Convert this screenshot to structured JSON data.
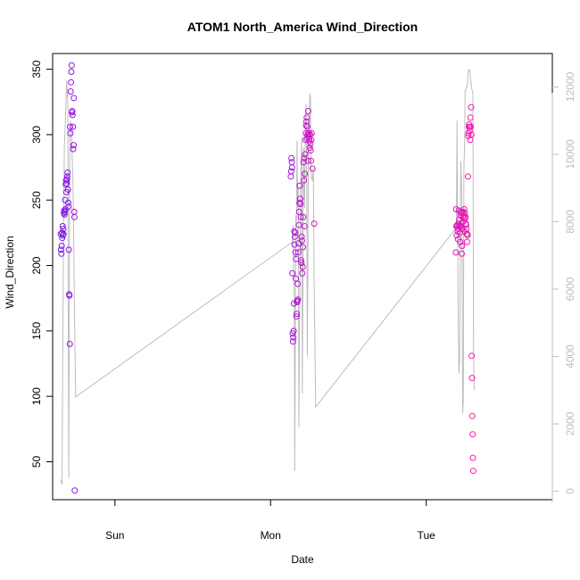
{
  "chart_data": {
    "type": "scatter",
    "title": "ATOM1 North_America Wind_Direction",
    "xlabel": "Date",
    "ylabel": "Wind_Direction",
    "x_ticks": [
      "Sun",
      "Mon",
      "Tue"
    ],
    "y_ticks": [
      "50",
      "100",
      "150",
      "200",
      "250",
      "300",
      "350"
    ],
    "y2_ticks": [
      "0",
      "2000",
      "4000",
      "6000",
      "8000",
      "10000",
      "12000"
    ],
    "ylim": [
      21,
      362
    ],
    "y2lim": [
      -250,
      12990
    ],
    "xlim": [
      0,
      3.21
    ],
    "x_tick_positions": [
      0.4,
      1.4,
      2.4
    ],
    "grid": false,
    "legend": "none",
    "colors": {
      "points_start": "#7a12f0",
      "points_end": "#ff1aa8",
      "line": "#bdbdbd",
      "right_axis": "#bdbdbd"
    },
    "points": [
      [
        0.052,
        224
      ],
      [
        0.054,
        212
      ],
      [
        0.056,
        209
      ],
      [
        0.058,
        215
      ],
      [
        0.06,
        225
      ],
      [
        0.062,
        221
      ],
      [
        0.064,
        230
      ],
      [
        0.066,
        223
      ],
      [
        0.068,
        228
      ],
      [
        0.07,
        224
      ],
      [
        0.072,
        240
      ],
      [
        0.074,
        242
      ],
      [
        0.076,
        239
      ],
      [
        0.078,
        241
      ],
      [
        0.08,
        250
      ],
      [
        0.082,
        243
      ],
      [
        0.084,
        262
      ],
      [
        0.086,
        265
      ],
      [
        0.088,
        256
      ],
      [
        0.09,
        263
      ],
      [
        0.092,
        266
      ],
      [
        0.094,
        268
      ],
      [
        0.096,
        271
      ],
      [
        0.098,
        258
      ],
      [
        0.1,
        248
      ],
      [
        0.102,
        245
      ],
      [
        0.104,
        212
      ],
      [
        0.106,
        178
      ],
      [
        0.108,
        177
      ],
      [
        0.11,
        140
      ],
      [
        0.112,
        306
      ],
      [
        0.114,
        301
      ],
      [
        0.116,
        333
      ],
      [
        0.118,
        340
      ],
      [
        0.12,
        348
      ],
      [
        0.122,
        353
      ],
      [
        0.124,
        317
      ],
      [
        0.126,
        318
      ],
      [
        0.128,
        315
      ],
      [
        0.13,
        306
      ],
      [
        0.132,
        289
      ],
      [
        0.134,
        292
      ],
      [
        0.136,
        328
      ],
      [
        0.138,
        241
      ],
      [
        0.14,
        237
      ],
      [
        0.142,
        28
      ],
      [
        1.53,
        268
      ],
      [
        1.532,
        272
      ],
      [
        1.534,
        282
      ],
      [
        1.536,
        279
      ],
      [
        1.538,
        275
      ],
      [
        1.54,
        194
      ],
      [
        1.542,
        148
      ],
      [
        1.544,
        142
      ],
      [
        1.546,
        145
      ],
      [
        1.548,
        150
      ],
      [
        1.55,
        171
      ],
      [
        1.552,
        226
      ],
      [
        1.554,
        216
      ],
      [
        1.556,
        222
      ],
      [
        1.558,
        225
      ],
      [
        1.56,
        210
      ],
      [
        1.562,
        190
      ],
      [
        1.564,
        205
      ],
      [
        1.566,
        161
      ],
      [
        1.568,
        163
      ],
      [
        1.57,
        172
      ],
      [
        1.572,
        173
      ],
      [
        1.574,
        186
      ],
      [
        1.576,
        174
      ],
      [
        1.578,
        210
      ],
      [
        1.58,
        217
      ],
      [
        1.582,
        231
      ],
      [
        1.584,
        241
      ],
      [
        1.586,
        248
      ],
      [
        1.588,
        261
      ],
      [
        1.59,
        251
      ],
      [
        1.592,
        247
      ],
      [
        1.594,
        237
      ],
      [
        1.596,
        204
      ],
      [
        1.598,
        202
      ],
      [
        1.6,
        222
      ],
      [
        1.602,
        219
      ],
      [
        1.604,
        194
      ],
      [
        1.606,
        199
      ],
      [
        1.608,
        214
      ],
      [
        1.61,
        237
      ],
      [
        1.612,
        279
      ],
      [
        1.614,
        265
      ],
      [
        1.616,
        282
      ],
      [
        1.618,
        230
      ],
      [
        1.62,
        270
      ],
      [
        1.622,
        285
      ],
      [
        1.624,
        296
      ],
      [
        1.626,
        301
      ],
      [
        1.628,
        307
      ],
      [
        1.63,
        310
      ],
      [
        1.632,
        313
      ],
      [
        1.634,
        297
      ],
      [
        1.636,
        306
      ],
      [
        1.638,
        300
      ],
      [
        1.64,
        280
      ],
      [
        1.642,
        318
      ],
      [
        1.644,
        300
      ],
      [
        1.646,
        301
      ],
      [
        1.648,
        297
      ],
      [
        1.65,
        295
      ],
      [
        1.652,
        290
      ],
      [
        1.654,
        300
      ],
      [
        1.656,
        293
      ],
      [
        1.658,
        288
      ],
      [
        1.66,
        280
      ],
      [
        1.662,
        296
      ],
      [
        1.664,
        301
      ],
      [
        1.67,
        274
      ],
      [
        1.68,
        232
      ],
      [
        2.59,
        210
      ],
      [
        2.592,
        243
      ],
      [
        2.594,
        230
      ],
      [
        2.596,
        223
      ],
      [
        2.598,
        230
      ],
      [
        2.6,
        231
      ],
      [
        2.602,
        226
      ],
      [
        2.604,
        220
      ],
      [
        2.606,
        228
      ],
      [
        2.608,
        232
      ],
      [
        2.61,
        242
      ],
      [
        2.612,
        235
      ],
      [
        2.614,
        230
      ],
      [
        2.616,
        225
      ],
      [
        2.618,
        218
      ],
      [
        2.62,
        230
      ],
      [
        2.622,
        238
      ],
      [
        2.624,
        240
      ],
      [
        2.626,
        241
      ],
      [
        2.628,
        209
      ],
      [
        2.63,
        215
      ],
      [
        2.632,
        228
      ],
      [
        2.634,
        233
      ],
      [
        2.636,
        240
      ],
      [
        2.638,
        241
      ],
      [
        2.64,
        236
      ],
      [
        2.642,
        238
      ],
      [
        2.644,
        243
      ],
      [
        2.646,
        226
      ],
      [
        2.648,
        240
      ],
      [
        2.65,
        236
      ],
      [
        2.652,
        237
      ],
      [
        2.654,
        232
      ],
      [
        2.656,
        231
      ],
      [
        2.658,
        228
      ],
      [
        2.66,
        224
      ],
      [
        2.662,
        218
      ],
      [
        2.664,
        224
      ],
      [
        2.666,
        223
      ],
      [
        2.668,
        268
      ],
      [
        2.67,
        299
      ],
      [
        2.672,
        301
      ],
      [
        2.674,
        306
      ],
      [
        2.676,
        308
      ],
      [
        2.678,
        303
      ],
      [
        2.68,
        306
      ],
      [
        2.682,
        296
      ],
      [
        2.684,
        313
      ],
      [
        2.686,
        306
      ],
      [
        2.688,
        321
      ],
      [
        2.69,
        300
      ],
      [
        2.692,
        131
      ],
      [
        2.694,
        114
      ],
      [
        2.696,
        85
      ],
      [
        2.698,
        71
      ],
      [
        2.7,
        53
      ],
      [
        2.702,
        43
      ]
    ],
    "line_y2": [
      [
        0.05,
        350
      ],
      [
        0.06,
        200
      ],
      [
        0.068,
        6500
      ],
      [
        0.075,
        10200
      ],
      [
        0.082,
        11000
      ],
      [
        0.09,
        12200
      ],
      [
        0.098,
        11500
      ],
      [
        0.1,
        6000
      ],
      [
        0.104,
        400
      ],
      [
        0.107,
        6000
      ],
      [
        0.11,
        10200
      ],
      [
        0.115,
        11000
      ],
      [
        0.12,
        10800
      ],
      [
        0.125,
        10000
      ],
      [
        0.13,
        9300
      ],
      [
        0.135,
        7500
      ],
      [
        0.14,
        5500
      ],
      [
        0.148,
        2800
      ],
      [
        1.54,
        7400
      ],
      [
        1.546,
        7900
      ],
      [
        1.549,
        6200
      ],
      [
        1.552,
        5800
      ],
      [
        1.555,
        600
      ],
      [
        1.558,
        3500
      ],
      [
        1.562,
        8200
      ],
      [
        1.566,
        8000
      ],
      [
        1.57,
        10400
      ],
      [
        1.574,
        8400
      ],
      [
        1.578,
        9000
      ],
      [
        1.582,
        1900
      ],
      [
        1.586,
        4900
      ],
      [
        1.59,
        6500
      ],
      [
        1.594,
        9400
      ],
      [
        1.6,
        10500
      ],
      [
        1.604,
        2900
      ],
      [
        1.608,
        6200
      ],
      [
        1.612,
        10200
      ],
      [
        1.618,
        8400
      ],
      [
        1.624,
        11000
      ],
      [
        1.628,
        11500
      ],
      [
        1.632,
        9500
      ],
      [
        1.636,
        4000
      ],
      [
        1.64,
        7000
      ],
      [
        1.644,
        11000
      ],
      [
        1.648,
        10600
      ],
      [
        1.652,
        11800
      ],
      [
        1.656,
        11700
      ],
      [
        1.66,
        9400
      ],
      [
        1.668,
        9200
      ],
      [
        1.675,
        9600
      ],
      [
        1.68,
        6100
      ],
      [
        1.69,
        2500
      ],
      [
        2.59,
        7800
      ],
      [
        2.594,
        8000
      ],
      [
        2.598,
        11000
      ],
      [
        2.602,
        7500
      ],
      [
        2.606,
        5000
      ],
      [
        2.61,
        3500
      ],
      [
        2.614,
        3800
      ],
      [
        2.618,
        6200
      ],
      [
        2.622,
        9800
      ],
      [
        2.626,
        9300
      ],
      [
        2.63,
        8000
      ],
      [
        2.634,
        2300
      ],
      [
        2.638,
        2700
      ],
      [
        2.642,
        9600
      ],
      [
        2.646,
        10200
      ],
      [
        2.65,
        11900
      ],
      [
        2.654,
        11900
      ],
      [
        2.658,
        12000
      ],
      [
        2.662,
        12000
      ],
      [
        2.666,
        12100
      ],
      [
        2.67,
        12500
      ],
      [
        2.68,
        12500
      ],
      [
        2.69,
        12000
      ],
      [
        2.7,
        11800
      ],
      [
        2.704,
        4100
      ],
      [
        2.708,
        3000
      ]
    ]
  }
}
